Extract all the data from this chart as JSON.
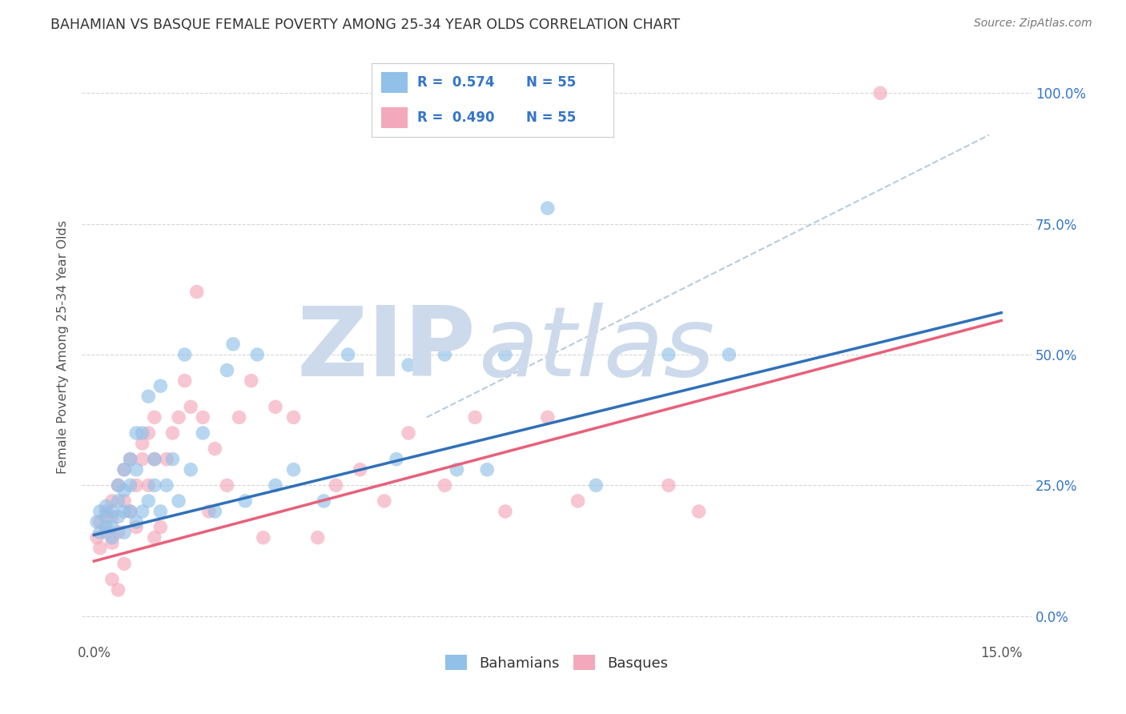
{
  "title": "BAHAMIAN VS BASQUE FEMALE POVERTY AMONG 25-34 YEAR OLDS CORRELATION CHART",
  "source": "Source: ZipAtlas.com",
  "ylabel": "Female Poverty Among 25-34 Year Olds",
  "xlim": [
    -0.002,
    0.155
  ],
  "ylim": [
    -0.05,
    1.08
  ],
  "xtick_labels": [
    "0.0%",
    "15.0%"
  ],
  "ytick_labels": [
    "0.0%",
    "25.0%",
    "50.0%",
    "75.0%",
    "100.0%"
  ],
  "ytick_vals": [
    0.0,
    0.25,
    0.5,
    0.75,
    1.0
  ],
  "xtick_vals": [
    0.0,
    0.15
  ],
  "blue_R": "0.574",
  "blue_N": "55",
  "pink_R": "0.490",
  "pink_N": "55",
  "blue_color": "#91c0e8",
  "pink_color": "#f4a8bb",
  "blue_line_color": "#3070b8",
  "pink_line_color": "#e8607a",
  "dashed_line_color": "#b8ccdc",
  "watermark_zip_color": "#cddaeb",
  "watermark_atlas_color": "#cddaeb",
  "legend_text_color": "#3575c8",
  "background_color": "#ffffff",
  "grid_color": "#cccccc",
  "title_color": "#333333",
  "blue_scatter_x": [
    0.0005,
    0.001,
    0.001,
    0.002,
    0.002,
    0.002,
    0.003,
    0.003,
    0.003,
    0.004,
    0.004,
    0.004,
    0.005,
    0.005,
    0.005,
    0.005,
    0.006,
    0.006,
    0.006,
    0.007,
    0.007,
    0.007,
    0.008,
    0.008,
    0.009,
    0.009,
    0.01,
    0.01,
    0.011,
    0.011,
    0.012,
    0.013,
    0.014,
    0.015,
    0.016,
    0.018,
    0.02,
    0.022,
    0.023,
    0.025,
    0.027,
    0.03,
    0.033,
    0.038,
    0.042,
    0.05,
    0.058,
    0.065,
    0.075,
    0.083,
    0.052,
    0.06,
    0.068,
    0.095,
    0.105
  ],
  "blue_scatter_y": [
    0.18,
    0.16,
    0.2,
    0.17,
    0.19,
    0.21,
    0.15,
    0.2,
    0.17,
    0.19,
    0.22,
    0.25,
    0.16,
    0.2,
    0.24,
    0.28,
    0.2,
    0.25,
    0.3,
    0.18,
    0.28,
    0.35,
    0.2,
    0.35,
    0.22,
    0.42,
    0.25,
    0.3,
    0.2,
    0.44,
    0.25,
    0.3,
    0.22,
    0.5,
    0.28,
    0.35,
    0.2,
    0.47,
    0.52,
    0.22,
    0.5,
    0.25,
    0.28,
    0.22,
    0.5,
    0.3,
    0.5,
    0.28,
    0.78,
    0.25,
    0.48,
    0.28,
    0.5,
    0.5,
    0.5
  ],
  "pink_scatter_x": [
    0.0005,
    0.001,
    0.001,
    0.002,
    0.002,
    0.003,
    0.003,
    0.003,
    0.004,
    0.004,
    0.005,
    0.005,
    0.006,
    0.006,
    0.007,
    0.007,
    0.008,
    0.008,
    0.009,
    0.009,
    0.01,
    0.01,
    0.011,
    0.012,
    0.013,
    0.014,
    0.015,
    0.016,
    0.017,
    0.018,
    0.019,
    0.02,
    0.022,
    0.024,
    0.026,
    0.028,
    0.03,
    0.033,
    0.037,
    0.04,
    0.044,
    0.048,
    0.052,
    0.058,
    0.063,
    0.068,
    0.075,
    0.08,
    0.095,
    0.1,
    0.003,
    0.004,
    0.005,
    0.01,
    0.13
  ],
  "pink_scatter_y": [
    0.15,
    0.13,
    0.18,
    0.16,
    0.2,
    0.14,
    0.19,
    0.22,
    0.16,
    0.25,
    0.22,
    0.28,
    0.2,
    0.3,
    0.17,
    0.25,
    0.3,
    0.33,
    0.25,
    0.35,
    0.3,
    0.38,
    0.17,
    0.3,
    0.35,
    0.38,
    0.45,
    0.4,
    0.62,
    0.38,
    0.2,
    0.32,
    0.25,
    0.38,
    0.45,
    0.15,
    0.4,
    0.38,
    0.15,
    0.25,
    0.28,
    0.22,
    0.35,
    0.25,
    0.38,
    0.2,
    0.38,
    0.22,
    0.25,
    0.2,
    0.07,
    0.05,
    0.1,
    0.15,
    1.0
  ],
  "blue_line_x0": 0.0,
  "blue_line_x1": 0.15,
  "blue_line_y0": 0.155,
  "blue_line_y1": 0.58,
  "pink_line_x0": 0.0,
  "pink_line_x1": 0.15,
  "pink_line_y0": 0.105,
  "pink_line_y1": 0.565,
  "dashed_line_x0": 0.055,
  "dashed_line_x1": 0.148,
  "dashed_line_y0": 0.38,
  "dashed_line_y1": 0.92
}
